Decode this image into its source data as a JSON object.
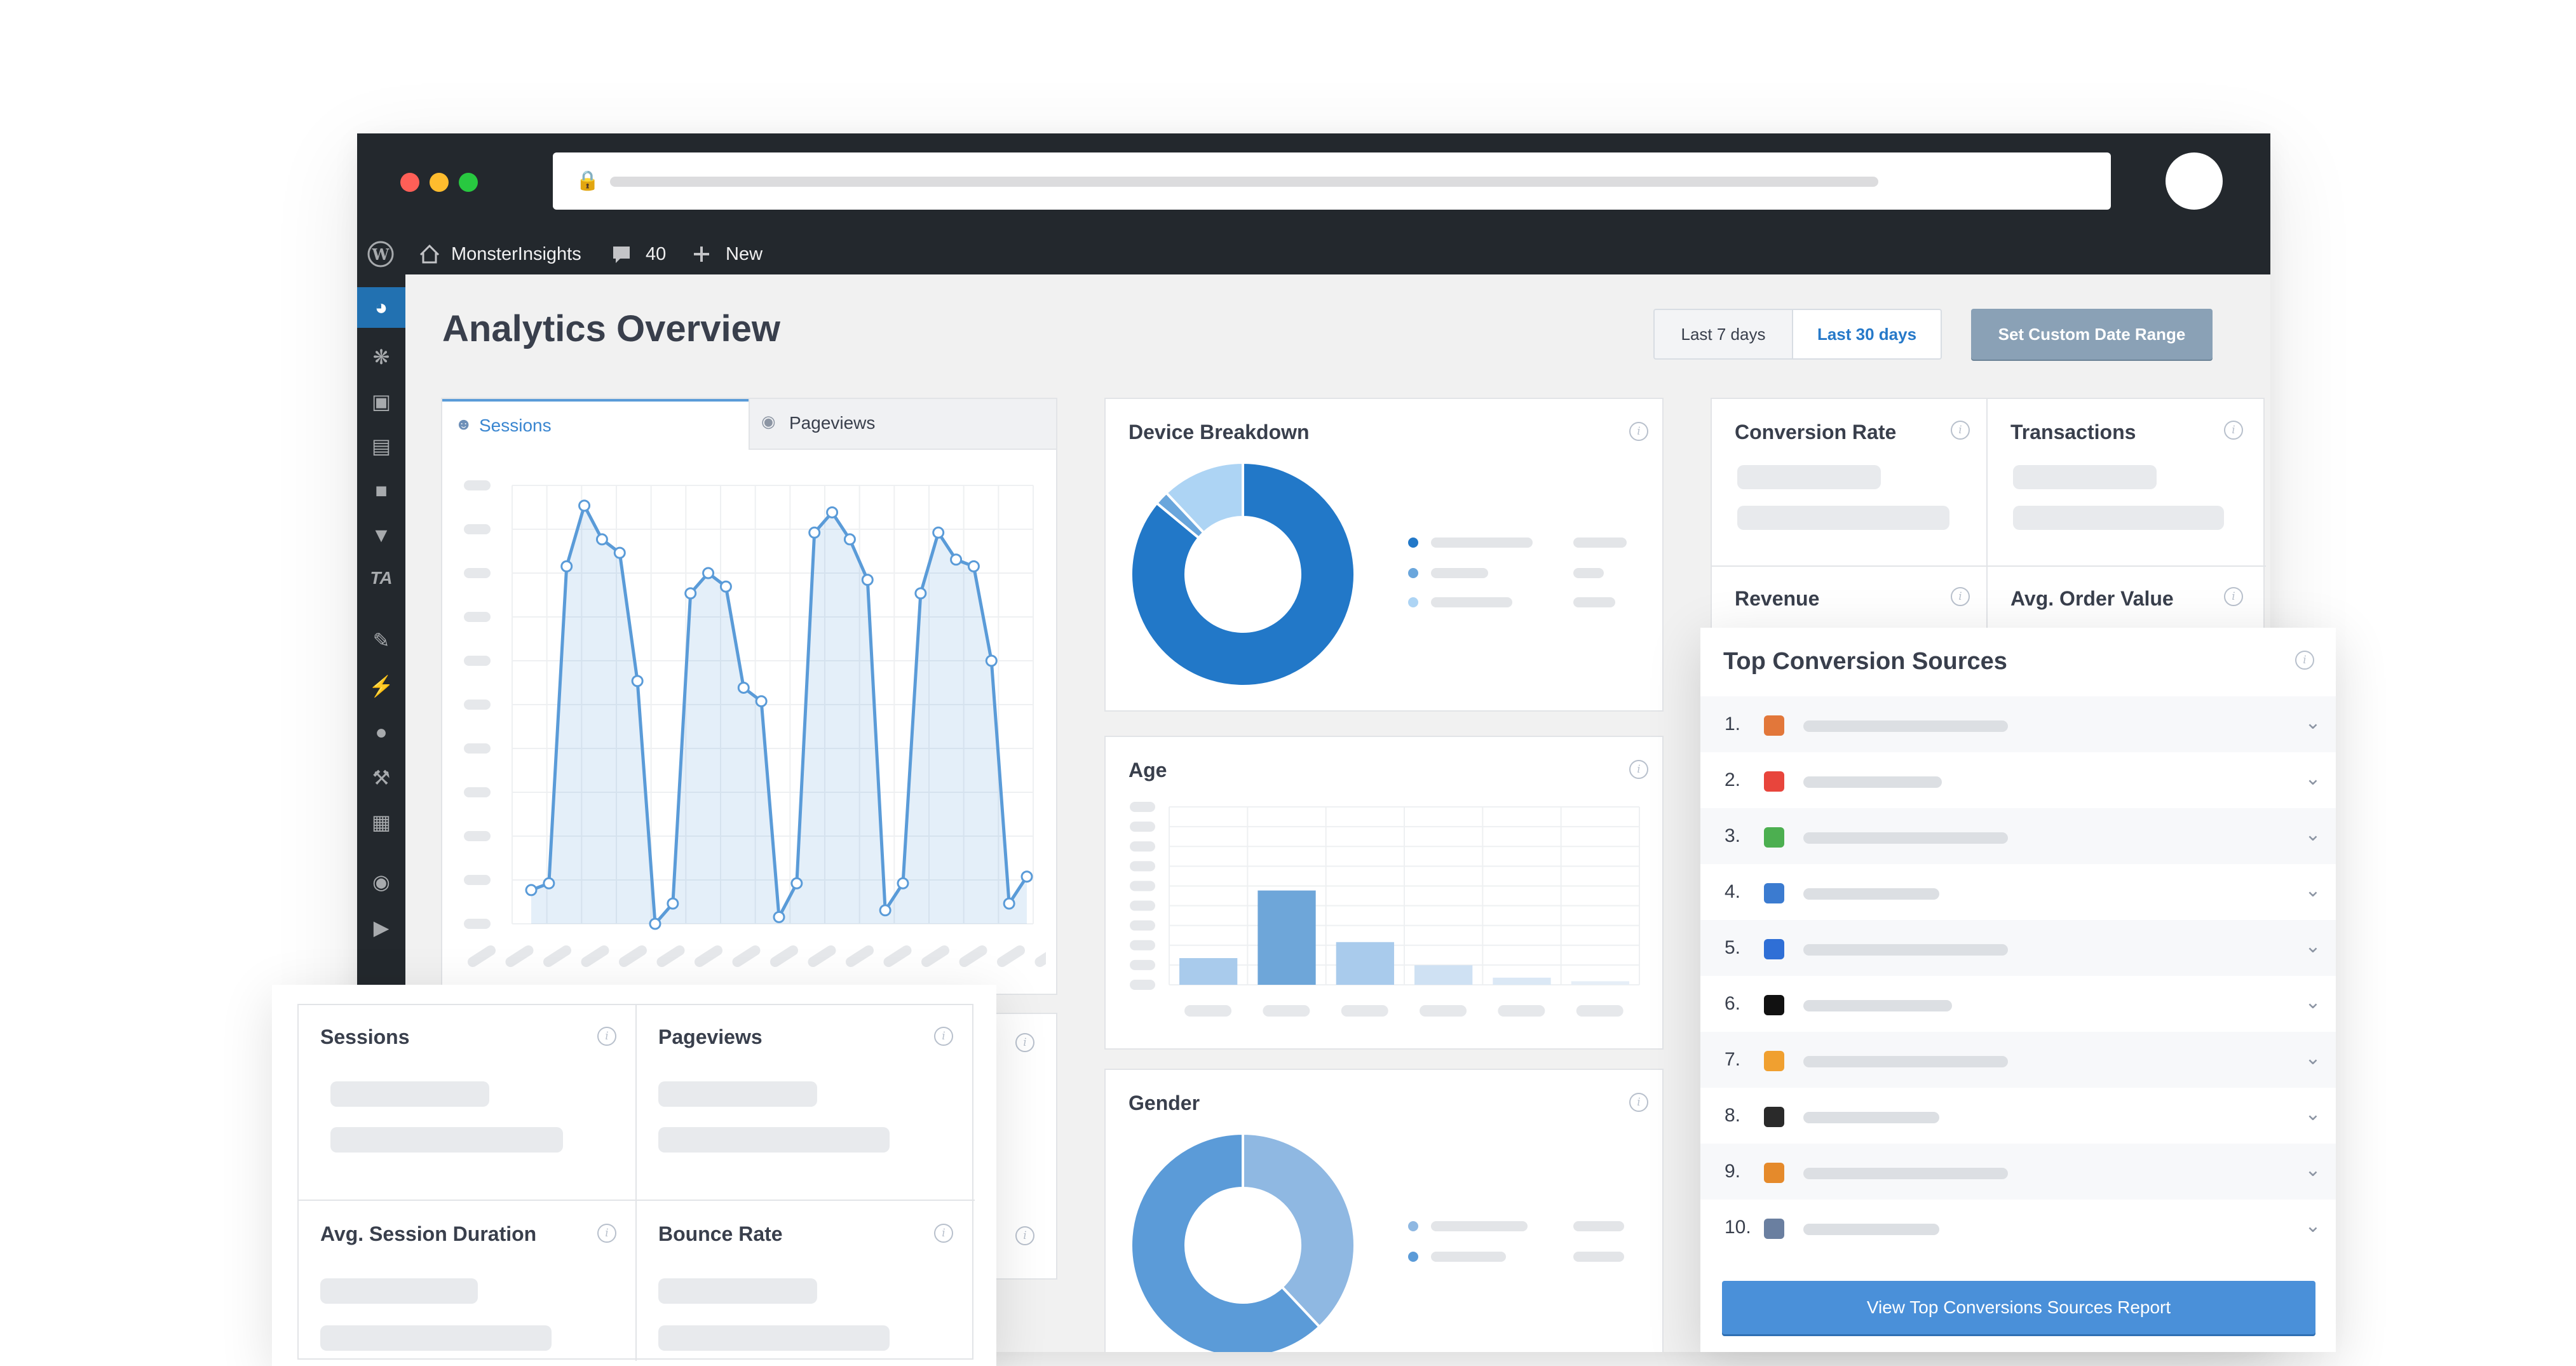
{
  "browser": {
    "dots": [
      "#ff5f57",
      "#febc2e",
      "#28c840"
    ]
  },
  "adminbar": {
    "site_name": "MonsterInsights",
    "comments_count": "40",
    "new_label": "New"
  },
  "page": {
    "title": "Analytics Overview"
  },
  "date_controls": {
    "last7": "Last 7 days",
    "last30": "Last 30 days",
    "custom": "Set Custom Date Range"
  },
  "tabs": {
    "sessions": "Sessions",
    "pageviews": "Pageviews"
  },
  "cards": {
    "device": "Device Breakdown",
    "age": "Age",
    "gender": "Gender",
    "conversion_rate": "Conversion Rate",
    "transactions": "Transactions",
    "revenue": "Revenue",
    "avg_order_value": "Avg. Order Value",
    "sessions": "Sessions",
    "pageviews": "Pageviews",
    "avg_session_duration": "Avg. Session Duration",
    "bounce_rate": "Bounce Rate"
  },
  "top_sources": {
    "title": "Top Conversion Sources",
    "button": "View Top Conversions Sources Report",
    "items": [
      {
        "num": "1.",
        "icon": "fox-icon",
        "color": "#e2773a"
      },
      {
        "num": "2.",
        "icon": "red-circle-icon",
        "color": "#e8453c"
      },
      {
        "num": "3.",
        "icon": "green-leaf-icon",
        "color": "#4caf50"
      },
      {
        "num": "4.",
        "icon": "wp-icon",
        "color": "#3b7bd0"
      },
      {
        "num": "5.",
        "icon": "m-icon",
        "color": "#2f6fd6"
      },
      {
        "num": "6.",
        "icon": "m-black-icon",
        "color": "#111111"
      },
      {
        "num": "7.",
        "icon": "star-icon",
        "color": "#f0a030"
      },
      {
        "num": "8.",
        "icon": "dark-square-icon",
        "color": "#2a2a2a"
      },
      {
        "num": "9.",
        "icon": "orange-leaf-icon",
        "color": "#e58a2b"
      },
      {
        "num": "10.",
        "icon": "gear-circle-icon",
        "color": "#6a7fa0"
      }
    ]
  },
  "chart_data": [
    {
      "type": "area",
      "series": [
        {
          "values": [
            5,
            6,
            53,
            62,
            57,
            55,
            36,
            0,
            3,
            49,
            52,
            50,
            35,
            33,
            1,
            6,
            58,
            61,
            57,
            51,
            2,
            6,
            49,
            58,
            54,
            53,
            39,
            3,
            7
          ]
        }
      ],
      "ylim": [
        0,
        65
      ],
      "grid": true
    },
    {
      "type": "pie",
      "values": [
        86,
        2,
        12
      ],
      "colors": [
        "#2278c8",
        "#6aa6dc",
        "#add4f4"
      ]
    },
    {
      "type": "bar",
      "values": [
        15,
        53,
        24,
        11,
        4,
        2
      ],
      "ylim": [
        0,
        100
      ],
      "colors": [
        "#a9cbec",
        "#6ea6d9",
        "#a9cbec",
        "#cfe1f3",
        "#dbe8f5",
        "#e6eef7"
      ],
      "grid": true
    },
    {
      "type": "pie",
      "values": [
        38,
        62
      ],
      "colors": [
        "#8fb8e2",
        "#5b9bd8"
      ]
    }
  ]
}
